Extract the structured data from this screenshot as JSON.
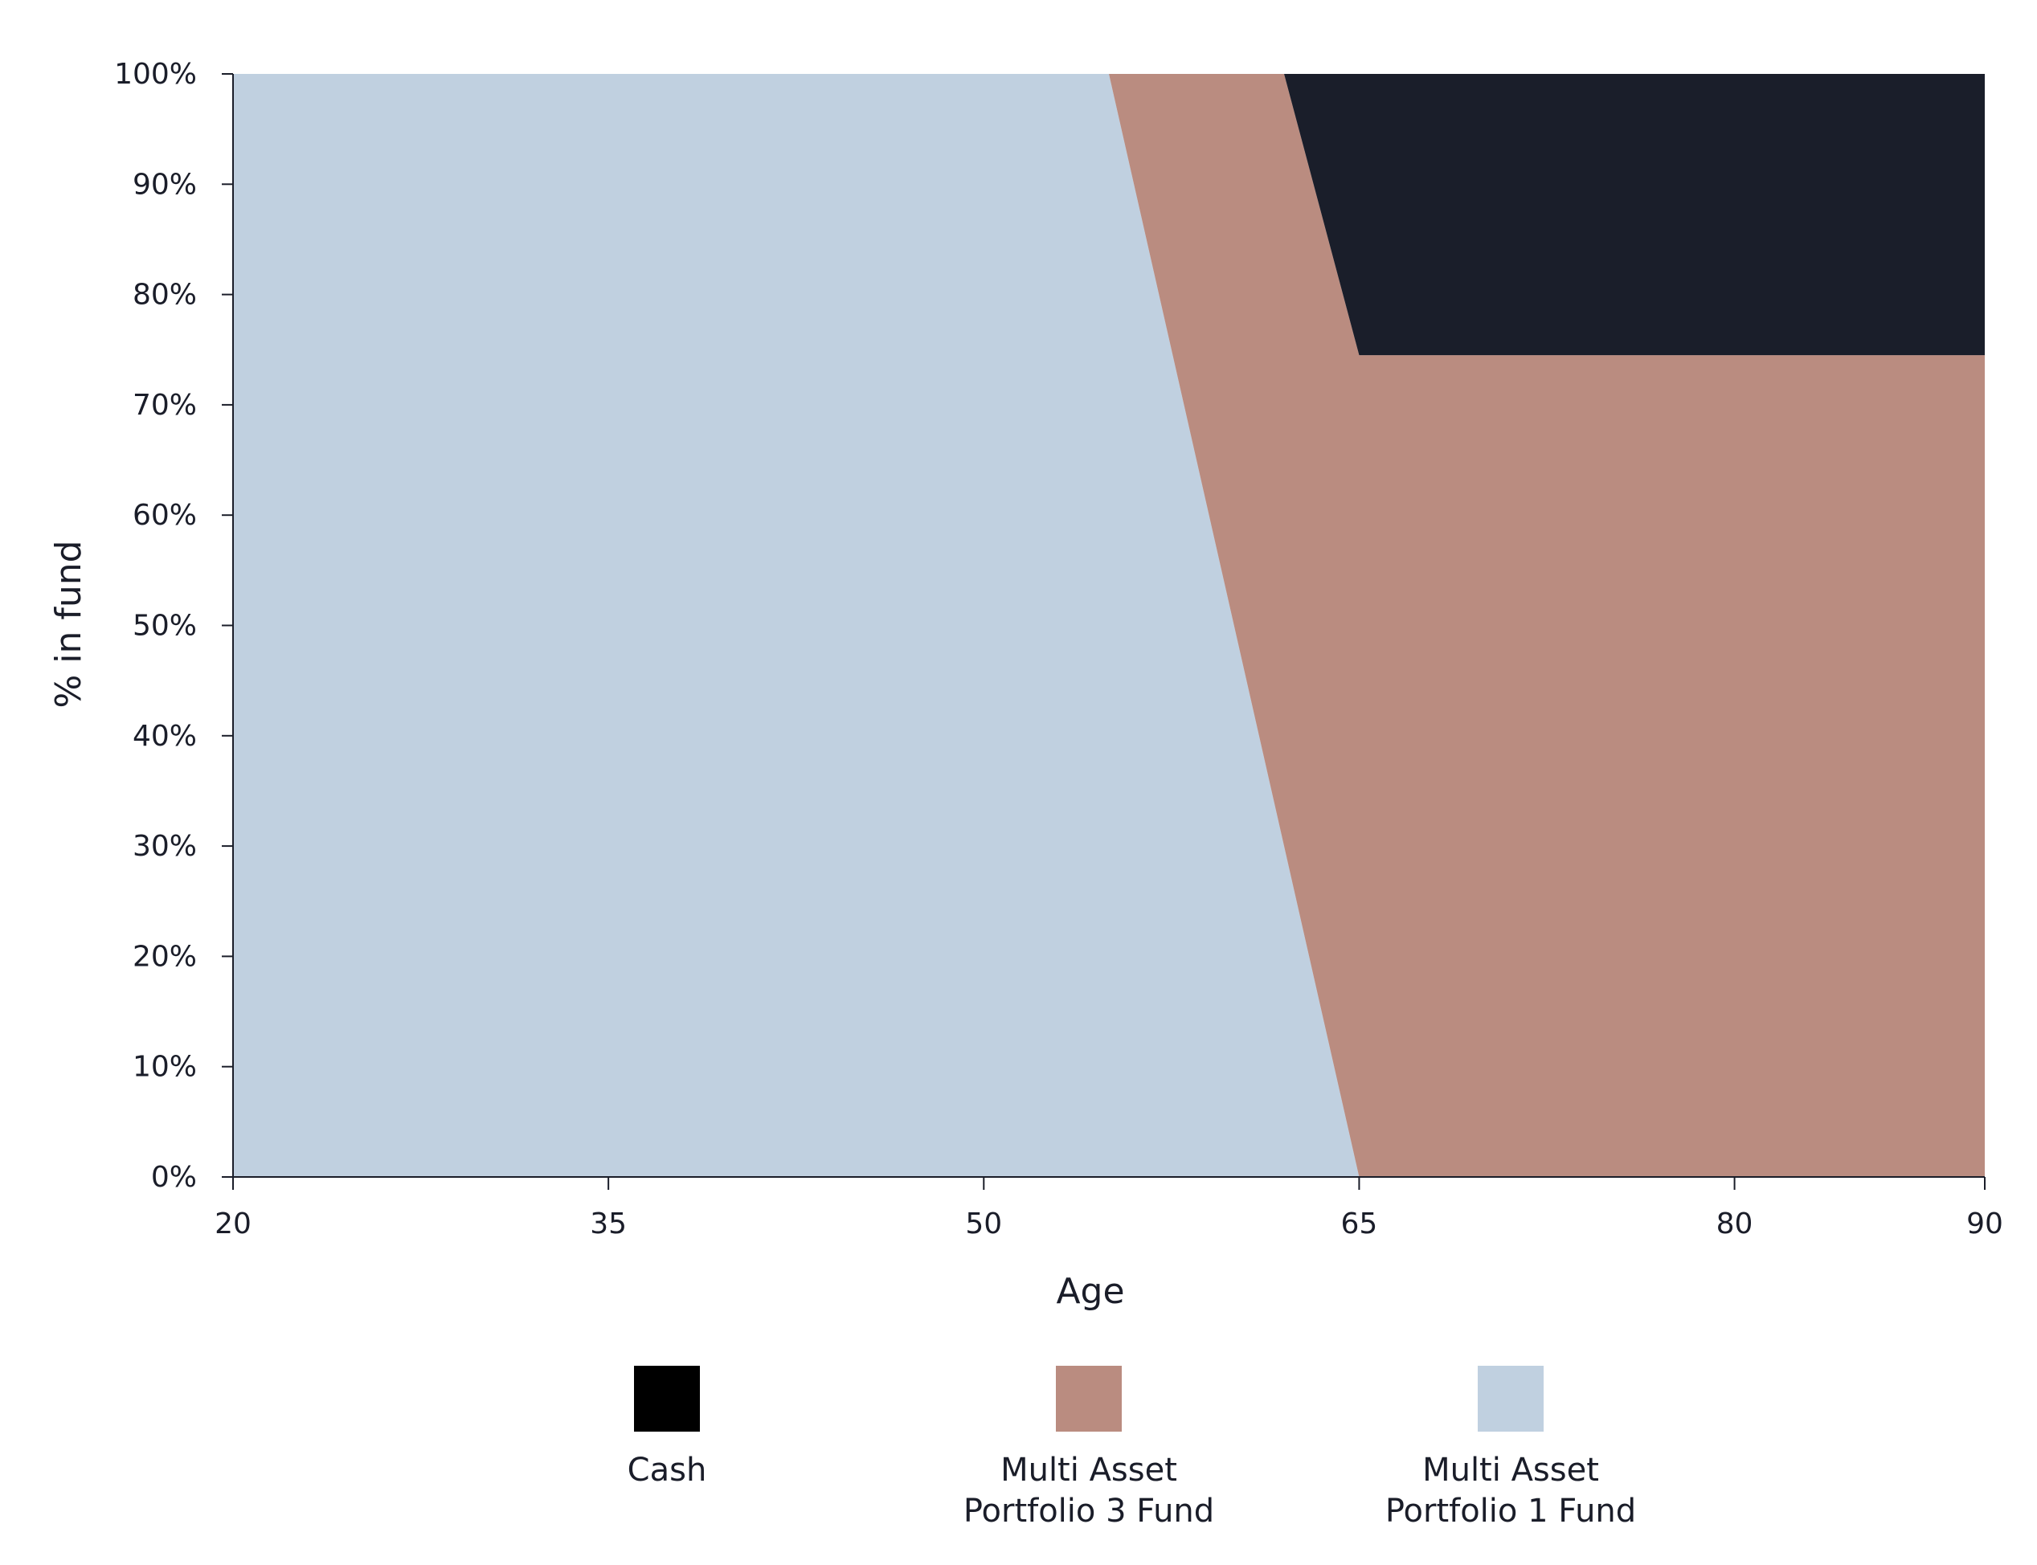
{
  "chart_data": {
    "type": "area",
    "stacked": true,
    "xlabel": "Age",
    "ylabel": "% in fund",
    "xlim": [
      20,
      90
    ],
    "ylim": [
      0,
      100
    ],
    "x_ticks": [
      20,
      35,
      50,
      65,
      80,
      90
    ],
    "x_tick_labels": [
      "20",
      "35",
      "50",
      "65",
      "80",
      "90"
    ],
    "y_ticks": [
      0,
      10,
      20,
      30,
      40,
      50,
      60,
      70,
      80,
      90,
      100
    ],
    "y_tick_labels": [
      "0%",
      "10%",
      "20%",
      "30%",
      "40%",
      "50%",
      "60%",
      "70%",
      "80%",
      "90%",
      "100%"
    ],
    "grid": false,
    "legend_placement": "bottom-center",
    "x": [
      20,
      55,
      62,
      65,
      90
    ],
    "series": [
      {
        "name": "Multi Asset Portfolio 1 Fund",
        "legend_lines": [
          "Multi Asset",
          "Portfolio 1 Fund"
        ],
        "color": "#c0d0e0",
        "values": [
          100,
          100,
          30,
          0,
          0
        ]
      },
      {
        "name": "Multi Asset Portfolio 3 Fund",
        "legend_lines": [
          "Multi Asset",
          "Portfolio 3 Fund"
        ],
        "color": "#ba8c80",
        "values": [
          0,
          0,
          70,
          74.5,
          74.5
        ]
      },
      {
        "name": "Cash",
        "legend_lines": [
          "Cash"
        ],
        "color": "#1a1e2a",
        "legend_color": "#000000",
        "values": [
          0,
          0,
          0,
          25.5,
          25.5
        ]
      }
    ],
    "legend_order": [
      "Cash",
      "Multi Asset Portfolio 3 Fund",
      "Multi Asset Portfolio 1 Fund"
    ],
    "axis_color": "#1a1d29"
  }
}
